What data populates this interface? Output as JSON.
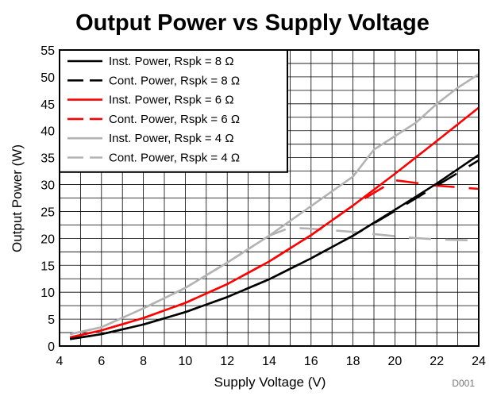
{
  "chart_data": {
    "type": "line",
    "title": "Output Power vs Supply Voltage",
    "xlabel": "Supply Voltage (V)",
    "ylabel": "Output Power (W)",
    "xlim": [
      4,
      24
    ],
    "ylim": [
      0,
      55
    ],
    "xticks": [
      4,
      6,
      8,
      10,
      12,
      14,
      16,
      18,
      20,
      22,
      24
    ],
    "yticks": [
      0,
      5,
      10,
      15,
      20,
      25,
      30,
      35,
      40,
      45,
      50,
      55
    ],
    "grid": true,
    "legend_position": "top-left",
    "figure_code": "D001",
    "series": [
      {
        "name": "Inst. Power, Rspk = 8 Ω",
        "color": "#000000",
        "style": "solid",
        "points": [
          [
            4.5,
            1.3
          ],
          [
            6,
            2.2
          ],
          [
            8,
            4.0
          ],
          [
            10,
            6.3
          ],
          [
            12,
            9.1
          ],
          [
            14,
            12.4
          ],
          [
            16,
            16.3
          ],
          [
            18,
            20.5
          ],
          [
            20,
            25.3
          ],
          [
            22,
            30.2
          ],
          [
            24,
            35.5
          ]
        ]
      },
      {
        "name": "Cont. Power, Rspk = 8 Ω",
        "color": "#000000",
        "style": "dashed",
        "points": [
          [
            4.5,
            1.3
          ],
          [
            6,
            2.2
          ],
          [
            8,
            4.0
          ],
          [
            10,
            6.3
          ],
          [
            12,
            9.1
          ],
          [
            14,
            12.4
          ],
          [
            16,
            16.3
          ],
          [
            18,
            20.5
          ],
          [
            20,
            25.1
          ],
          [
            22,
            29.8
          ],
          [
            24,
            34.5
          ]
        ]
      },
      {
        "name": "Inst. Power, Rspk = 6 Ω",
        "color": "#ff0000",
        "style": "solid",
        "points": [
          [
            4.5,
            1.6
          ],
          [
            6,
            2.9
          ],
          [
            8,
            5.2
          ],
          [
            10,
            8.0
          ],
          [
            12,
            11.5
          ],
          [
            14,
            15.7
          ],
          [
            16,
            20.6
          ],
          [
            18,
            26.1
          ],
          [
            20,
            32.0
          ],
          [
            22,
            38.1
          ],
          [
            24,
            44.3
          ]
        ]
      },
      {
        "name": "Cont. Power, Rspk = 6 Ω",
        "color": "#ff0000",
        "style": "dashed",
        "points": [
          [
            4.5,
            1.6
          ],
          [
            6,
            2.9
          ],
          [
            8,
            5.2
          ],
          [
            10,
            8.0
          ],
          [
            12,
            11.5
          ],
          [
            14,
            15.7
          ],
          [
            16,
            20.6
          ],
          [
            18,
            26.1
          ],
          [
            20,
            30.8
          ],
          [
            22,
            29.8
          ],
          [
            24,
            29.2
          ]
        ]
      },
      {
        "name": "Inst. Power, Rspk = 4 Ω",
        "color": "#b3b3b3",
        "style": "solid",
        "points": [
          [
            4.5,
            2.2
          ],
          [
            6,
            3.5
          ],
          [
            8,
            7.0
          ],
          [
            10,
            10.8
          ],
          [
            12,
            15.5
          ],
          [
            14,
            20.5
          ],
          [
            16,
            26.0
          ],
          [
            18,
            31.5
          ],
          [
            19,
            36.5
          ],
          [
            21,
            41.5
          ],
          [
            22,
            45.0
          ],
          [
            23,
            48.0
          ],
          [
            24,
            50.5
          ]
        ]
      },
      {
        "name": "Cont. Power, Rspk = 4 Ω",
        "color": "#b3b3b3",
        "style": "dashed",
        "points": [
          [
            4.5,
            2.2
          ],
          [
            6,
            3.5
          ],
          [
            8,
            7.0
          ],
          [
            10,
            10.8
          ],
          [
            12,
            15.5
          ],
          [
            14,
            20.5
          ],
          [
            15,
            22.0
          ],
          [
            16,
            21.8
          ],
          [
            18,
            21.2
          ],
          [
            19,
            20.8
          ],
          [
            20.5,
            20.2
          ],
          [
            22,
            19.8
          ],
          [
            24,
            19.6
          ]
        ]
      }
    ]
  }
}
